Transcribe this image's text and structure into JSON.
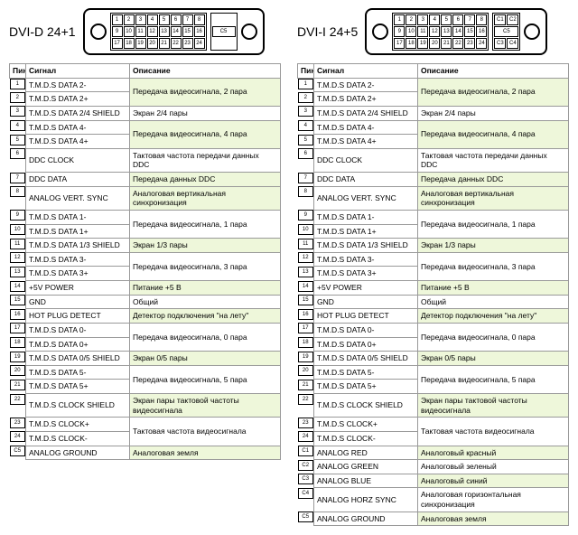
{
  "headers": {
    "pin": "Пин",
    "signal": "Сигнал",
    "desc": "Описание"
  },
  "colors": {
    "highlight": "#eef7da",
    "border": "#999999"
  },
  "dvid": {
    "title": "DVI-D 24+1",
    "side_pins": [
      "C5"
    ],
    "rows": [
      {
        "pin": "1",
        "sig": "T.M.D.S DATA 2-",
        "desc": "Передача видеосигнала, 2 пара",
        "span": 2,
        "hl": true
      },
      {
        "pin": "2",
        "sig": "T.M.D.S DATA 2+"
      },
      {
        "pin": "3",
        "sig": "T.M.D.S DATA 2/4 SHIELD",
        "desc": "Экран 2/4 пары",
        "span": 1,
        "hl": false
      },
      {
        "pin": "4",
        "sig": "T.M.D.S DATA 4-",
        "desc": "Передача видеосигнала, 4 пара",
        "span": 2,
        "hl": true
      },
      {
        "pin": "5",
        "sig": "T.M.D.S DATA 4+"
      },
      {
        "pin": "6",
        "sig": "DDC CLOCK",
        "desc": "Тактовая частота передачи данных DDC",
        "span": 1,
        "hl": false
      },
      {
        "pin": "7",
        "sig": "DDC DATA",
        "desc": "Передача данных DDC",
        "span": 1,
        "hl": true
      },
      {
        "pin": "8",
        "sig": "ANALOG VERT. SYNC",
        "desc": "Аналоговая вертикальная синхронизация",
        "span": 1,
        "hl": true
      },
      {
        "pin": "9",
        "sig": "T.M.D.S DATA 1-",
        "desc": "Передача видеосигнала, 1 пара",
        "span": 2,
        "hl": false
      },
      {
        "pin": "10",
        "sig": "T.M.D.S DATA 1+"
      },
      {
        "pin": "11",
        "sig": "T.M.D.S DATA 1/3 SHIELD",
        "desc": "Экран 1/3 пары",
        "span": 1,
        "hl": true
      },
      {
        "pin": "12",
        "sig": "T.M.D.S DATA 3-",
        "desc": "Передача видеосигнала, 3 пара",
        "span": 2,
        "hl": false
      },
      {
        "pin": "13",
        "sig": "T.M.D.S DATA 3+"
      },
      {
        "pin": "14",
        "sig": "+5V POWER",
        "desc": "Питание +5 В",
        "span": 1,
        "hl": true
      },
      {
        "pin": "15",
        "sig": "GND",
        "desc": "Общий",
        "span": 1,
        "hl": false
      },
      {
        "pin": "16",
        "sig": "HOT PLUG DETECT",
        "desc": "Детектор подключения \"на лету\"",
        "span": 1,
        "hl": true
      },
      {
        "pin": "17",
        "sig": "T.M.D.S DATA 0-",
        "desc": "Передача видеосигнала, 0 пара",
        "span": 2,
        "hl": false
      },
      {
        "pin": "18",
        "sig": "T.M.D.S DATA 0+"
      },
      {
        "pin": "19",
        "sig": "T.M.D.S DATA 0/5 SHIELD",
        "desc": "Экран 0/5 пары",
        "span": 1,
        "hl": true
      },
      {
        "pin": "20",
        "sig": "T.M.D.S DATA 5-",
        "desc": "Передача видеосигнала, 5 пара",
        "span": 2,
        "hl": false
      },
      {
        "pin": "21",
        "sig": "T.M.D.S DATA 5+"
      },
      {
        "pin": "22",
        "sig": "T.M.D.S CLOCK SHIELD",
        "desc": "Экран пары тактовой частоты видеосигнала",
        "span": 1,
        "hl": true
      },
      {
        "pin": "23",
        "sig": "T.M.D.S CLOCK+",
        "desc": "Тактовая частота видеосигнала",
        "span": 2,
        "hl": false
      },
      {
        "pin": "24",
        "sig": "T.M.D.S CLOCK-"
      },
      {
        "pin": "C5",
        "sig": "ANALOG GROUND",
        "desc": "Аналоговая земля",
        "span": 1,
        "hl": true
      }
    ]
  },
  "dvii": {
    "title": "DVI-I 24+5",
    "side_pins": [
      "C1",
      "C2",
      "C3",
      "C4",
      "C5"
    ],
    "rows": [
      {
        "pin": "1",
        "sig": "T.M.D.S DATA 2-",
        "desc": "Передача видеосигнала, 2 пара",
        "span": 2,
        "hl": true
      },
      {
        "pin": "2",
        "sig": "T.M.D.S DATA 2+"
      },
      {
        "pin": "3",
        "sig": "T.M.D.S DATA 2/4 SHIELD",
        "desc": "Экран 2/4 пары",
        "span": 1,
        "hl": false
      },
      {
        "pin": "4",
        "sig": "T.M.D.S DATA 4-",
        "desc": "Передача видеосигнала, 4 пара",
        "span": 2,
        "hl": true
      },
      {
        "pin": "5",
        "sig": "T.M.D.S DATA 4+"
      },
      {
        "pin": "6",
        "sig": "DDC CLOCK",
        "desc": "Тактовая частота передачи данных DDC",
        "span": 1,
        "hl": false
      },
      {
        "pin": "7",
        "sig": "DDC DATA",
        "desc": "Передача данных DDC",
        "span": 1,
        "hl": true
      },
      {
        "pin": "8",
        "sig": "ANALOG VERT. SYNC",
        "desc": "Аналоговая вертикальная синхронизация",
        "span": 1,
        "hl": true
      },
      {
        "pin": "9",
        "sig": "T.M.D.S DATA 1-",
        "desc": "Передача видеосигнала, 1 пара",
        "span": 2,
        "hl": false
      },
      {
        "pin": "10",
        "sig": "T.M.D.S DATA 1+"
      },
      {
        "pin": "11",
        "sig": "T.M.D.S DATA 1/3 SHIELD",
        "desc": "Экран 1/3 пары",
        "span": 1,
        "hl": true
      },
      {
        "pin": "12",
        "sig": "T.M.D.S DATA 3-",
        "desc": "Передача видеосигнала, 3 пара",
        "span": 2,
        "hl": false
      },
      {
        "pin": "13",
        "sig": "T.M.D.S DATA 3+"
      },
      {
        "pin": "14",
        "sig": "+5V POWER",
        "desc": "Питание +5 В",
        "span": 1,
        "hl": true
      },
      {
        "pin": "15",
        "sig": "GND",
        "desc": "Общий",
        "span": 1,
        "hl": false
      },
      {
        "pin": "16",
        "sig": "HOT PLUG DETECT",
        "desc": "Детектор подключения \"на лету\"",
        "span": 1,
        "hl": true
      },
      {
        "pin": "17",
        "sig": "T.M.D.S DATA 0-",
        "desc": "Передача видеосигнала, 0 пара",
        "span": 2,
        "hl": false
      },
      {
        "pin": "18",
        "sig": "T.M.D.S DATA 0+"
      },
      {
        "pin": "19",
        "sig": "T.M.D.S DATA 0/5 SHIELD",
        "desc": "Экран 0/5 пары",
        "span": 1,
        "hl": true
      },
      {
        "pin": "20",
        "sig": "T.M.D.S DATA 5-",
        "desc": "Передача видеосигнала, 5 пара",
        "span": 2,
        "hl": false
      },
      {
        "pin": "21",
        "sig": "T.M.D.S DATA 5+"
      },
      {
        "pin": "22",
        "sig": "T.M.D.S CLOCK SHIELD",
        "desc": "Экран пары тактовой частоты видеосигнала",
        "span": 1,
        "hl": true
      },
      {
        "pin": "23",
        "sig": "T.M.D.S CLOCK+",
        "desc": "Тактовая частота видеосигнала",
        "span": 2,
        "hl": false
      },
      {
        "pin": "24",
        "sig": "T.M.D.S CLOCK-"
      },
      {
        "pin": "C1",
        "sig": "ANALOG RED",
        "desc": "Аналоговый красный",
        "span": 1,
        "hl": true
      },
      {
        "pin": "C2",
        "sig": "ANALOG GREEN",
        "desc": "Аналоговый зеленый",
        "span": 1,
        "hl": false
      },
      {
        "pin": "C3",
        "sig": "ANALOG BLUE",
        "desc": "Аналоговый синий",
        "span": 1,
        "hl": true
      },
      {
        "pin": "C4",
        "sig": "ANALOG HORZ SYNC",
        "desc": "Аналоговая горизонтальная синхронизация",
        "span": 1,
        "hl": false
      },
      {
        "pin": "C5",
        "sig": "ANALOG GROUND",
        "desc": "Аналоговая земля",
        "span": 1,
        "hl": true
      }
    ]
  }
}
